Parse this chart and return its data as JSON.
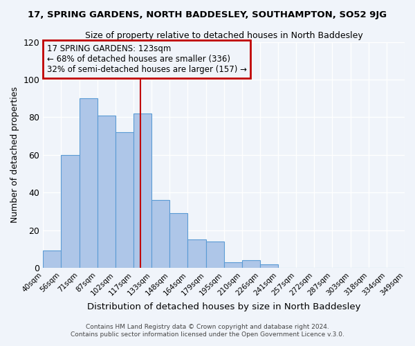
{
  "title": "17, SPRING GARDENS, NORTH BADDESLEY, SOUTHAMPTON, SO52 9JG",
  "subtitle": "Size of property relative to detached houses in North Baddesley",
  "xlabel": "Distribution of detached houses by size in North Baddesley",
  "ylabel": "Number of detached properties",
  "bar_values": [
    9,
    60,
    90,
    81,
    72,
    82,
    36,
    29,
    15,
    14,
    3,
    4,
    2,
    0,
    0,
    0,
    0,
    0,
    0,
    0
  ],
  "bin_labels": [
    "40sqm",
    "56sqm",
    "71sqm",
    "87sqm",
    "102sqm",
    "117sqm",
    "133sqm",
    "148sqm",
    "164sqm",
    "179sqm",
    "195sqm",
    "210sqm",
    "226sqm",
    "241sqm",
    "257sqm",
    "272sqm",
    "287sqm",
    "303sqm",
    "318sqm",
    "334sqm",
    "349sqm"
  ],
  "n_bins": 20,
  "vline_bin": 5.5,
  "bar_color": "#aec6e8",
  "bar_edgecolor": "#5b9bd5",
  "vline_color": "#c00000",
  "ylim": [
    0,
    120
  ],
  "yticks": [
    0,
    20,
    40,
    60,
    80,
    100,
    120
  ],
  "annotation_title": "17 SPRING GARDENS: 123sqm",
  "annotation_line1": "← 68% of detached houses are smaller (336)",
  "annotation_line2": "32% of semi-detached houses are larger (157) →",
  "annotation_box_color": "#c00000",
  "footnote1": "Contains HM Land Registry data © Crown copyright and database right 2024.",
  "footnote2": "Contains public sector information licensed under the Open Government Licence v.3.0.",
  "bg_color": "#f0f4fa",
  "grid_color": "#ffffff"
}
